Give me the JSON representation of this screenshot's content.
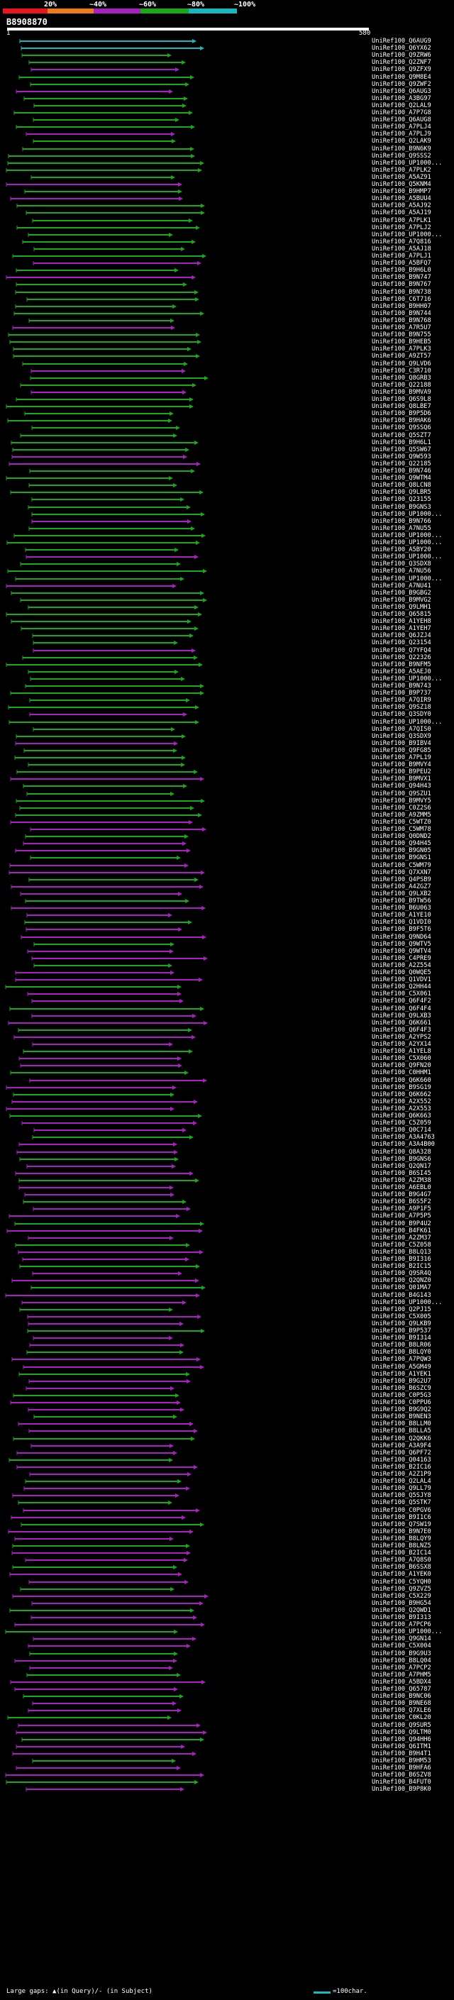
{
  "header": {
    "query_id": "B8908870",
    "start_coord": "1",
    "end_coord": "580",
    "scale": [
      {
        "label": "20%",
        "color": "#e8141e"
      },
      {
        "label": "~40%",
        "color": "#ee7a1c"
      },
      {
        "label": "~60%",
        "color": "#a820c0"
      },
      {
        "label": "~80%",
        "color": "#18a818"
      },
      {
        "label": "~100%",
        "color": "#18b8c0"
      }
    ]
  },
  "hits": [
    "UniRef100_Q6AUG9",
    "UniRef100_Q6YX62",
    "UniRef100_Q9ZRW6",
    "UniRef100_Q2ZNF7",
    "UniRef100_Q9ZFX9",
    "UniRef100_Q9M8E4",
    "UniRef100_Q9ZWF2",
    "UniRef100_Q6AUG3",
    "UniRef100_A3BG97",
    "UniRef100_Q2LAL9",
    "UniRef100_A7P7G8",
    "UniRef100_Q6AUG8",
    "UniRef100_A7PLJ4",
    "UniRef100_A7PLJ9",
    "UniRef100_Q2LAK9",
    "UniRef100_B9N6K9",
    "UniRef100_Q9SSS2",
    "UniRef100_UP1000...",
    "UniRef100_A7PLK2",
    "UniRef100_A5AZ91",
    "UniRef100_Q5KNM4",
    "UniRef100_B9HMP7",
    "UniRef100_A5BUU4",
    "UniRef100_A5AJ92",
    "UniRef100_A5AJ19",
    "UniRef100_A7PLK1",
    "UniRef100_A7PLJ2",
    "UniRef100_UP1000...",
    "UniRef100_A7Q816",
    "UniRef100_A5AJ18",
    "UniRef100_A7PLJ1",
    "UniRef100_A5BFQ7",
    "UniRef100_B9H6L0",
    "UniRef100_B9N747",
    "UniRef100_B9N767",
    "UniRef100_B9N738",
    "UniRef100_C6T716",
    "UniRef100_B9HH07",
    "UniRef100_B9N744",
    "UniRef100_B9N768",
    "UniRef100_A7R5U7",
    "UniRef100_B9N755",
    "UniRef100_B9HEB5",
    "UniRef100_A7PLK3",
    "UniRef100_A9ZT57",
    "UniRef100_Q9LVD6",
    "UniRef100_C3R710",
    "UniRef100_Q8GRB3",
    "UniRef100_Q22188",
    "UniRef100_B9MVA9",
    "UniRef100_Q6S9L8",
    "UniRef100_Q8LBE7",
    "UniRef100_B9P5D6",
    "UniRef100_B9HAK6",
    "UniRef100_Q9SSQ6",
    "UniRef100_Q5SZT7",
    "UniRef100_B9H6L1",
    "UniRef100_Q5SW67",
    "UniRef100_Q9W593",
    "UniRef100_Q22185",
    "UniRef100_B9N746",
    "UniRef100_Q9WTM4",
    "UniRef100_Q8LCN8",
    "UniRef100_Q9LBR5",
    "UniRef100_Q23155",
    "UniRef100_B9GNS3",
    "UniRef100_UP1000...",
    "UniRef100_B9N766",
    "UniRef100_A7NU55",
    "UniRef100_UP1000...",
    "UniRef100_UP1000...",
    "UniRef100_A5BY20",
    "UniRef100_UP1000...",
    "UniRef100_Q3SDX8",
    "UniRef100_A7NU56",
    "UniRef100_UP1000...",
    "UniRef100_A7NU41",
    "UniRef100_B9GBG2",
    "UniRef100_B9MVG2",
    "UniRef100_Q9LMH1",
    "UniRef100_Q65815",
    "UniRef100_A1YEH8",
    "UniRef100_A1YEH7",
    "UniRef100_Q6JZJ4",
    "UniRef100_Q23154",
    "UniRef100_Q7YFQ4",
    "UniRef100_Q22326",
    "UniRef100_B9NFM5",
    "UniRef100_A5AEJ0",
    "UniRef100_UP1000...",
    "UniRef100_B9N743",
    "UniRef100_B9P737",
    "UniRef100_A7QIR9",
    "UniRef100_Q9SZ18",
    "UniRef100_Q3SDY0",
    "UniRef100_UP1000...",
    "UniRef100_A7QIS0",
    "UniRef100_Q3SDX9",
    "UniRef100_B9IBV4",
    "UniRef100_Q9FG85",
    "UniRef100_A7PL19",
    "UniRef100_B9MVY4",
    "UniRef100_B9PEU2",
    "UniRef100_B9MVX1",
    "UniRef100_Q94H43",
    "UniRef100_Q9SZU1",
    "UniRef100_B9MVY5",
    "UniRef100_C0Z2S6",
    "UniRef100_A9ZMM5",
    "UniRef100_C5WTZ0",
    "UniRef100_C5WM78",
    "UniRef100_Q0DND2",
    "UniRef100_Q94H45",
    "UniRef100_B9GN05",
    "UniRef100_B9GNS1",
    "UniRef100_C5WM79",
    "UniRef100_Q7XXN7",
    "UniRef100_Q4PSB9",
    "UniRef100_A4ZGZ7",
    "UniRef100_Q9LXB2",
    "UniRef100_B9TW56",
    "UniRef100_B6U063",
    "UniRef100_A1YE10",
    "UniRef100_Q1VDI0",
    "UniRef100_B9F5T6",
    "UniRef100_Q9ND64",
    "UniRef100_Q9WTV5",
    "UniRef100_Q9WTV4",
    "UniRef100_C4PRE9",
    "UniRef100_A2Z554",
    "UniRef100_Q0WQE5",
    "UniRef100_Q1VDV1",
    "UniRef100_Q2HH44",
    "UniRef100_C5X061",
    "UniRef100_Q6F4F2",
    "UniRef100_Q6F4F4",
    "UniRef100_Q9LXB3",
    "UniRef100_Q6K661",
    "UniRef100_Q6F4F3",
    "UniRef100_A2YPS2",
    "UniRef100_A2YX14",
    "UniRef100_A1YEL8",
    "UniRef100_C5X060",
    "UniRef100_Q9FN20",
    "UniRef100_C0HHM1",
    "UniRef100_Q6K660",
    "UniRef100_B9SG19",
    "UniRef100_Q6K662",
    "UniRef100_A2X552",
    "UniRef100_A2X553",
    "UniRef100_Q6K663",
    "UniRef100_C5Z059",
    "UniRef100_Q0C714",
    "UniRef100_A3A4763",
    "UniRef100_A3A4B00",
    "UniRef100_Q8A328",
    "UniRef100_B9GNS6",
    "UniRef100_Q2QN17",
    "UniRef100_B6SI45",
    "UniRef100_A2ZM38",
    "UniRef100_A6EBL0",
    "UniRef100_B9G4G7",
    "UniRef100_B6S5F2",
    "UniRef100_A9P1F5",
    "UniRef100_A7P5P5",
    "UniRef100_B9P4U2",
    "UniRef100_B4FK61",
    "UniRef100_A2ZM37",
    "UniRef100_C5Z058",
    "UniRef100_B8LQ13",
    "UniRef100_B9I316",
    "UniRef100_B2IC15",
    "UniRef100_Q9SR4Q",
    "UniRef100_Q2QNZ0",
    "UniRef100_Q01MA7",
    "UniRef100_B4G143",
    "UniRef100_UP1000...",
    "UniRef100_Q2PJ15",
    "UniRef100_C5X005",
    "UniRef100_Q9LKB9",
    "UniRef100_B9P537",
    "UniRef100_B9I314",
    "UniRef100_B8LR06",
    "UniRef100_B8LQY0",
    "UniRef100_A7PQW3",
    "UniRef100_A5GM49",
    "UniRef100_A1YEK1",
    "UniRef100_B9G2U7",
    "UniRef100_B6SZC9",
    "UniRef100_C0P5G3",
    "UniRef100_C0PPU6",
    "UniRef100_B9G9Q2",
    "UniRef100_B9NEN3",
    "UniRef100_B8LLM0",
    "UniRef100_B8LLA5",
    "UniRef100_Q2QKK6",
    "UniRef100_A3A9F4",
    "UniRef100_Q6PF72",
    "UniRef100_Q04163",
    "UniRef100_B2IC16",
    "UniRef100_A2Z1P9",
    "UniRef100_Q2LAL4",
    "UniRef100_Q9LL79",
    "UniRef100_Q5SJY8",
    "UniRef100_Q5STK7",
    "UniRef100_C0PGV6",
    "UniRef100_B9I1C6",
    "UniRef100_Q7SW19",
    "UniRef100_B9N7E0",
    "UniRef100_B8LQY9",
    "UniRef100_B8LNZ5",
    "UniRef100_B2IC14",
    "UniRef100_A7Q8S0",
    "UniRef100_B6SSX8",
    "UniRef100_A1YEK0",
    "UniRef100_C5YQH0",
    "UniRef100_Q9ZVZ5",
    "UniRef100_C5X229",
    "UniRef100_B9HG54",
    "UniRef100_Q2QWD1",
    "UniRef100_B9I313",
    "UniRef100_A7PCP6",
    "UniRef100_UP1000...",
    "UniRef100_Q9GN14",
    "UniRef100_C5X004",
    "UniRef100_B9G9U3",
    "UniRef100_B8LQ04",
    "UniRef100_A7PCP2",
    "UniRef100_A7PHM5",
    "UniRef100_A5BDX4",
    "UniRef100_Q65787",
    "UniRef100_B9NC06",
    "UniRef100_B9NE68",
    "UniRef100_Q7XLE6",
    "UniRef100_C0KL20",
    "UniRef100_Q9SUR5",
    "UniRef100_Q9LTM0",
    "UniRef100_Q94HH6",
    "UniRef100_Q6ITM1",
    "UniRef100_B9H4T1",
    "UniRef100_B9HM53",
    "UniRef100_B9HFA6",
    "UniRef100_B6SZV8",
    "UniRef100_B4FUT0",
    "UniRef100_B9P8K0"
  ],
  "footer": {
    "gaps_legend": "Large gaps: ▲(in Query)/- (in Subject)",
    "scale_legend": "=100char."
  }
}
